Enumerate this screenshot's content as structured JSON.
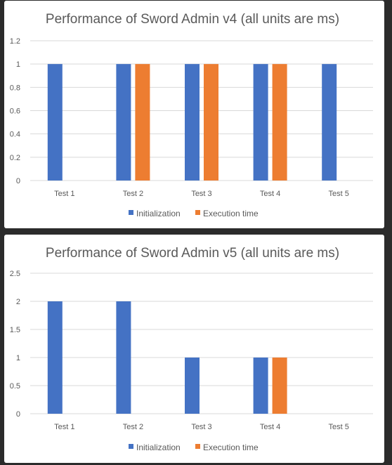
{
  "colors": {
    "initialization": "#4472c4",
    "execution": "#ed7d31",
    "background": "#2b2b2b",
    "panel": "#ffffff"
  },
  "chart_data": [
    {
      "type": "bar",
      "title": "Performance of Sword Admin v4 (all units are ms)",
      "categories": [
        "Test 1",
        "Test 2",
        "Test 3",
        "Test 4",
        "Test 5"
      ],
      "series": [
        {
          "name": "Initialization",
          "values": [
            1,
            1,
            1,
            1,
            1
          ]
        },
        {
          "name": "Execution time",
          "values": [
            0,
            1,
            1,
            1,
            0
          ]
        }
      ],
      "ylim": [
        0,
        1.2
      ],
      "yticks": [
        "0",
        "0.2",
        "0.4",
        "0.6",
        "0.8",
        "1",
        "1.2"
      ],
      "grid": true,
      "legend": "bottom"
    },
    {
      "type": "bar",
      "title": "Performance of Sword Admin v5 (all units are ms)",
      "categories": [
        "Test 1",
        "Test 2",
        "Test 3",
        "Test 4",
        "Test 5"
      ],
      "series": [
        {
          "name": "Initialization",
          "values": [
            2,
            2,
            1,
            1,
            0
          ]
        },
        {
          "name": "Execution time",
          "values": [
            0,
            0,
            0,
            1,
            0
          ]
        }
      ],
      "ylim": [
        0,
        2.5
      ],
      "yticks": [
        "0",
        "0.5",
        "1",
        "1.5",
        "2",
        "2.5"
      ],
      "grid": true,
      "legend": "bottom"
    }
  ]
}
